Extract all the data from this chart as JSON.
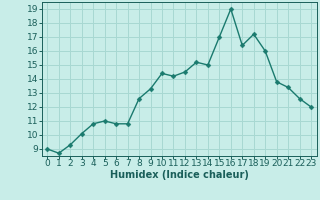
{
  "x": [
    0,
    1,
    2,
    3,
    4,
    5,
    6,
    7,
    8,
    9,
    10,
    11,
    12,
    13,
    14,
    15,
    16,
    17,
    18,
    19,
    20,
    21,
    22,
    23
  ],
  "y": [
    9.0,
    8.7,
    9.3,
    10.1,
    10.8,
    11.0,
    10.8,
    10.8,
    12.6,
    13.3,
    14.4,
    14.2,
    14.5,
    15.2,
    15.0,
    17.0,
    19.0,
    16.4,
    17.2,
    16.0,
    13.8,
    13.4,
    12.6,
    12.0
  ],
  "line_color": "#1a7a6e",
  "marker": "D",
  "markersize": 2.5,
  "linewidth": 1.0,
  "bg_color": "#c8ede8",
  "grid_color": "#a8d8d2",
  "xlabel": "Humidex (Indice chaleur)",
  "xlim": [
    -0.5,
    23.5
  ],
  "ylim": [
    8.5,
    19.5
  ],
  "yticks": [
    9,
    10,
    11,
    12,
    13,
    14,
    15,
    16,
    17,
    18,
    19
  ],
  "xticks": [
    0,
    1,
    2,
    3,
    4,
    5,
    6,
    7,
    8,
    9,
    10,
    11,
    12,
    13,
    14,
    15,
    16,
    17,
    18,
    19,
    20,
    21,
    22,
    23
  ],
  "xtick_labels": [
    "0",
    "1",
    "2",
    "3",
    "4",
    "5",
    "6",
    "7",
    "8",
    "9",
    "10",
    "11",
    "12",
    "13",
    "14",
    "15",
    "16",
    "17",
    "18",
    "19",
    "20",
    "21",
    "22",
    "23"
  ],
  "tick_color": "#1a5f5a",
  "label_fontsize": 7,
  "tick_fontsize": 6.5
}
